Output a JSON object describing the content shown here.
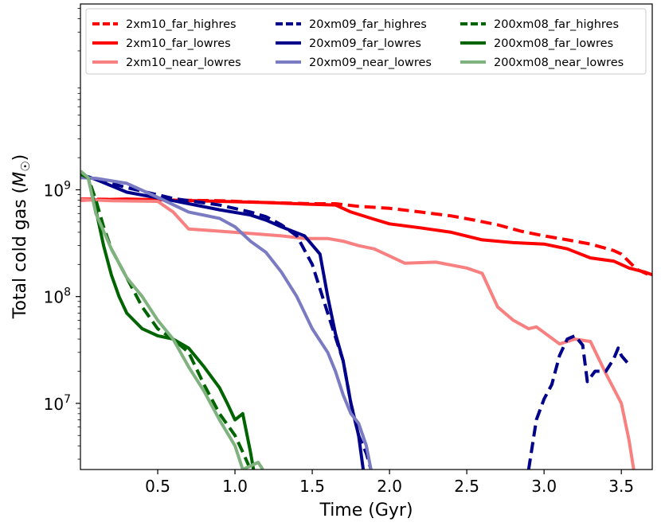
{
  "chart_data": {
    "type": "line",
    "xlabel": "Time (Gyr)",
    "ylabel_text": "Total cold gas (",
    "ylabel_unit": "M",
    "ylabel_unit_sub": "☉",
    "ylabel_close": ")",
    "xscale": "linear",
    "yscale": "log",
    "xlim": [
      0.0,
      3.7
    ],
    "ylim": [
      2400000,
      55000000000
    ],
    "grid": false,
    "legend_placement": "top",
    "x_ticks": [
      {
        "value": 0.5,
        "label": "0.5"
      },
      {
        "value": 1.0,
        "label": "1.0"
      },
      {
        "value": 1.5,
        "label": "1.5"
      },
      {
        "value": 2.0,
        "label": "2.0"
      },
      {
        "value": 2.5,
        "label": "2.5"
      },
      {
        "value": 3.0,
        "label": "3.0"
      },
      {
        "value": 3.5,
        "label": "3.5"
      }
    ],
    "y_ticks": [
      {
        "value": 10000000,
        "base": "10",
        "exp": "7"
      },
      {
        "value": 100000000,
        "base": "10",
        "exp": "8"
      },
      {
        "value": 1000000000,
        "base": "10",
        "exp": "9"
      }
    ],
    "series": [
      {
        "name": "2xm10_far_highres",
        "color": "#ff0000",
        "style": "dashed",
        "x": [
          0.0,
          0.3,
          0.6,
          0.9,
          1.2,
          1.5,
          1.65,
          1.8,
          2.0,
          2.2,
          2.4,
          2.55,
          2.7,
          2.85,
          3.0,
          3.15,
          3.3,
          3.45,
          3.5,
          3.6,
          3.7
        ],
        "y": [
          820000000,
          810000000,
          800000000,
          790000000,
          760000000,
          740000000,
          740000000,
          700000000,
          670000000,
          620000000,
          570000000,
          520000000,
          470000000,
          410000000,
          370000000,
          340000000,
          310000000,
          270000000,
          250000000,
          180000000,
          155000000
        ]
      },
      {
        "name": "2xm10_far_lowres",
        "color": "#ff0000",
        "style": "solid",
        "x": [
          0.0,
          0.3,
          0.6,
          0.9,
          1.2,
          1.5,
          1.65,
          1.75,
          1.9,
          2.0,
          2.2,
          2.4,
          2.6,
          2.8,
          3.0,
          3.15,
          3.3,
          3.45,
          3.55,
          3.65,
          3.7
        ],
        "y": [
          800000000,
          820000000,
          800000000,
          780000000,
          760000000,
          730000000,
          720000000,
          620000000,
          530000000,
          480000000,
          440000000,
          400000000,
          340000000,
          320000000,
          310000000,
          280000000,
          230000000,
          215000000,
          185000000,
          170000000,
          160000000
        ]
      },
      {
        "name": "2xm10_near_lowres",
        "color": "#f88080",
        "style": "solid",
        "x": [
          0.0,
          0.2,
          0.5,
          0.6,
          0.7,
          0.9,
          1.1,
          1.3,
          1.45,
          1.6,
          1.7,
          1.8,
          1.9,
          2.0,
          2.1,
          2.3,
          2.5,
          2.6,
          2.7,
          2.8,
          2.9,
          2.95,
          3.0,
          3.1,
          3.2,
          3.3,
          3.4,
          3.5,
          3.55,
          3.58
        ],
        "y": [
          810000000,
          790000000,
          780000000,
          620000000,
          430000000,
          410000000,
          390000000,
          370000000,
          350000000,
          350000000,
          330000000,
          300000000,
          280000000,
          240000000,
          205000000,
          210000000,
          185000000,
          165000000,
          80000000,
          60000000,
          50000000,
          52000000,
          46000000,
          36000000,
          40000000,
          38000000,
          19000000,
          10000000,
          4500000,
          2400000
        ]
      },
      {
        "name": "20xm09_far_highres",
        "color": "#00008b",
        "style": "dashed",
        "x": [
          0.0,
          0.1,
          0.3,
          0.6,
          0.9,
          1.1,
          1.2,
          1.3,
          1.4,
          1.5,
          1.6,
          1.7,
          1.75,
          1.8,
          1.85,
          1.88
        ],
        "y": [
          1400000000,
          1250000000,
          1050000000,
          830000000,
          720000000,
          620000000,
          560000000,
          470000000,
          370000000,
          200000000,
          70000000,
          25000000,
          10000000,
          5000000,
          3400000,
          2400000
        ]
      },
      {
        "name": "20xm09_far_lowres",
        "color": "#00008b",
        "style": "solid",
        "x": [
          0.0,
          0.1,
          0.3,
          0.6,
          0.9,
          1.1,
          1.2,
          1.3,
          1.45,
          1.55,
          1.6,
          1.65,
          1.7,
          1.75,
          1.8,
          1.83
        ],
        "y": [
          1400000000,
          1250000000,
          950000000,
          790000000,
          650000000,
          580000000,
          520000000,
          450000000,
          370000000,
          250000000,
          100000000,
          45000000,
          25000000,
          10000000,
          5000000,
          2400000
        ]
      },
      {
        "name": "20xm09_near_lowres",
        "color": "#7b7bc4",
        "style": "solid",
        "x": [
          0.0,
          0.1,
          0.3,
          0.5,
          0.7,
          0.9,
          1.0,
          1.1,
          1.2,
          1.3,
          1.4,
          1.5,
          1.6,
          1.65,
          1.7,
          1.75,
          1.8,
          1.85,
          1.88
        ],
        "y": [
          1300000000,
          1280000000,
          1150000000,
          850000000,
          620000000,
          540000000,
          450000000,
          330000000,
          260000000,
          170000000,
          100000000,
          50000000,
          30000000,
          20000000,
          12000000,
          8000000,
          6500000,
          4000000,
          2400000
        ]
      },
      {
        "name": "20xm09_far_highres (late)",
        "color": "#00008b",
        "style": "dashed",
        "x": [
          2.9,
          2.95,
          3.0,
          3.05,
          3.1,
          3.15,
          3.2,
          3.25,
          3.28,
          3.33,
          3.4,
          3.45,
          3.48,
          3.5,
          3.55
        ],
        "y": [
          2400000,
          7000000,
          11000000,
          15000000,
          28000000,
          40000000,
          43000000,
          35000000,
          16000000,
          20000000,
          20000000,
          26000000,
          33000000,
          28000000,
          23000000
        ]
      },
      {
        "name": "200xm08_far_highres",
        "color": "#006400",
        "style": "dashed",
        "x": [
          0.0,
          0.05,
          0.1,
          0.15,
          0.2,
          0.3,
          0.4,
          0.5,
          0.6,
          0.7,
          0.8,
          0.9,
          1.0,
          1.05,
          1.1
        ],
        "y": [
          1400000000,
          1300000000,
          800000000,
          450000000,
          280000000,
          150000000,
          80000000,
          50000000,
          40000000,
          30000000,
          15000000,
          8000000,
          5000000,
          3500000,
          2400000
        ]
      },
      {
        "name": "200xm08_far_lowres",
        "color": "#006400",
        "style": "solid",
        "x": [
          0.0,
          0.05,
          0.1,
          0.15,
          0.2,
          0.25,
          0.3,
          0.4,
          0.5,
          0.6,
          0.7,
          0.8,
          0.9,
          0.95,
          1.0,
          1.05,
          1.1,
          1.12
        ],
        "y": [
          1400000000,
          1300000000,
          650000000,
          300000000,
          160000000,
          100000000,
          70000000,
          50000000,
          43000000,
          40000000,
          33000000,
          22000000,
          14000000,
          10000000,
          7000000,
          8000000,
          3500000,
          2400000
        ]
      },
      {
        "name": "200xm08_near_lowres",
        "color": "#7fb27f",
        "style": "solid",
        "x": [
          0.0,
          0.05,
          0.1,
          0.2,
          0.3,
          0.4,
          0.5,
          0.6,
          0.7,
          0.8,
          0.9,
          1.0,
          1.05,
          1.15,
          1.18
        ],
        "y": [
          1500000000,
          1300000000,
          600000000,
          280000000,
          150000000,
          100000000,
          60000000,
          40000000,
          22000000,
          13000000,
          7000000,
          4000000,
          2400000,
          2800000,
          2400000
        ]
      }
    ],
    "legend": {
      "columns": 3,
      "entries": [
        {
          "label": "2xm10_far_highres",
          "color": "#ff0000",
          "style": "dashed"
        },
        {
          "label": "20xm09_far_highres",
          "color": "#00008b",
          "style": "dashed"
        },
        {
          "label": "200xm08_far_highres",
          "color": "#006400",
          "style": "dashed"
        },
        {
          "label": "2xm10_far_lowres",
          "color": "#ff0000",
          "style": "solid"
        },
        {
          "label": "20xm09_far_lowres",
          "color": "#00008b",
          "style": "solid"
        },
        {
          "label": "200xm08_far_lowres",
          "color": "#006400",
          "style": "solid"
        },
        {
          "label": "2xm10_near_lowres",
          "color": "#f88080",
          "style": "solid"
        },
        {
          "label": "20xm09_near_lowres",
          "color": "#7b7bc4",
          "style": "solid"
        },
        {
          "label": "200xm08_near_lowres",
          "color": "#7fb27f",
          "style": "solid"
        }
      ]
    }
  }
}
